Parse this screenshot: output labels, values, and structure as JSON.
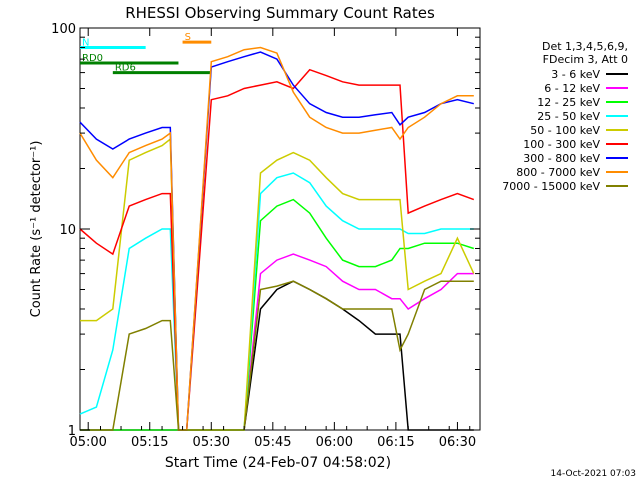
{
  "chart_data": {
    "type": "line",
    "title": "RHESSI Observing Summary Count Rates",
    "xlabel": "Start Time (24-Feb-07 04:58:02)",
    "ylabel": "Count Rate (s⁻¹ detector⁻¹)",
    "yscale": "log",
    "ylim": [
      1,
      100
    ],
    "xlim_minutes": [
      0,
      97.5
    ],
    "x_ticks": [
      {
        "m": 2,
        "label": "05:00"
      },
      {
        "m": 17,
        "label": "05:15"
      },
      {
        "m": 32,
        "label": "05:30"
      },
      {
        "m": 47,
        "label": "05:45"
      },
      {
        "m": 62,
        "label": "06:00"
      },
      {
        "m": 77,
        "label": "06:15"
      },
      {
        "m": 92,
        "label": "06:30"
      }
    ],
    "y_ticks": [
      {
        "v": 1,
        "label": "1"
      },
      {
        "v": 10,
        "label": "10"
      },
      {
        "v": 100,
        "label": "100"
      }
    ],
    "legend_header": [
      "Det 1,3,4,5,6,9,",
      "FDecim 3, Att 0"
    ],
    "legend_position": "right",
    "footer_date": "14-Oct-2021 07:03",
    "series": [
      {
        "name": "3 - 6 keV",
        "color": "#000000",
        "x": [
          0,
          4,
          8,
          12,
          16,
          20,
          22,
          24,
          26,
          32,
          36,
          40,
          44,
          48,
          52,
          56,
          60,
          64,
          68,
          72,
          76,
          78,
          80,
          84,
          88,
          92,
          96
        ],
        "y": [
          1.0,
          1.0,
          1.0,
          1.0,
          1.0,
          1.0,
          1.0,
          1.0,
          1.0,
          1.0,
          1.0,
          1.0,
          4.0,
          5.0,
          5.5,
          5.0,
          4.5,
          4.0,
          3.5,
          3.0,
          3.0,
          3.0,
          1.0,
          1.0,
          1.0,
          1.0,
          1.0
        ]
      },
      {
        "name": "6 - 12 keV",
        "color": "#ff00ff",
        "x": [
          0,
          4,
          8,
          12,
          16,
          20,
          22,
          24,
          26,
          32,
          36,
          40,
          44,
          48,
          52,
          56,
          60,
          64,
          68,
          72,
          76,
          78,
          80,
          84,
          88,
          92,
          96
        ],
        "y": [
          1.0,
          1.0,
          1.0,
          1.0,
          1.0,
          1.0,
          1.0,
          1.0,
          1.0,
          1.0,
          1.0,
          1.0,
          6.0,
          7.0,
          7.5,
          7.0,
          6.5,
          5.5,
          5.0,
          5.0,
          4.5,
          4.5,
          4.0,
          4.5,
          5.0,
          6.0,
          6.0
        ]
      },
      {
        "name": "12 - 25 keV",
        "color": "#00ff00",
        "x": [
          0,
          4,
          8,
          12,
          16,
          20,
          22,
          24,
          26,
          32,
          36,
          40,
          44,
          48,
          52,
          56,
          60,
          64,
          68,
          72,
          76,
          78,
          80,
          84,
          88,
          92,
          96
        ],
        "y": [
          1.0,
          1.0,
          1.0,
          1.0,
          1.0,
          1.0,
          1.0,
          1.0,
          1.0,
          1.0,
          1.0,
          1.0,
          11.0,
          13.0,
          14.0,
          12.0,
          9.0,
          7.0,
          6.5,
          6.5,
          7.0,
          8.0,
          8.0,
          8.5,
          8.5,
          8.5,
          8.0
        ]
      },
      {
        "name": "25 - 50 keV",
        "color": "#00ffff",
        "x": [
          0,
          4,
          8,
          12,
          16,
          20,
          22,
          24,
          26,
          32,
          36,
          40,
          44,
          48,
          52,
          56,
          60,
          64,
          68,
          72,
          76,
          78,
          80,
          84,
          88,
          92,
          96
        ],
        "y": [
          1.2,
          1.3,
          2.5,
          8.0,
          9.0,
          10.0,
          10.0,
          1.0,
          1.0,
          1.0,
          1.0,
          1.0,
          15.0,
          18.0,
          19.0,
          17.0,
          13.0,
          11.0,
          10.0,
          10.0,
          10.0,
          10.0,
          9.5,
          9.5,
          10.0,
          10.0,
          10.0
        ]
      },
      {
        "name": "50 - 100 keV",
        "color": "#cccc00",
        "x": [
          0,
          4,
          8,
          12,
          16,
          20,
          22,
          24,
          26,
          32,
          36,
          40,
          44,
          48,
          52,
          56,
          60,
          64,
          68,
          72,
          76,
          78,
          80,
          84,
          88,
          92,
          96
        ],
        "y": [
          3.5,
          3.5,
          4.0,
          22.0,
          24.0,
          26.0,
          28.0,
          1.0,
          1.0,
          1.0,
          1.0,
          1.0,
          19.0,
          22.0,
          24.0,
          22.0,
          18.0,
          15.0,
          14.0,
          14.0,
          14.0,
          14.0,
          5.0,
          5.5,
          6.0,
          9.0,
          6.0
        ]
      },
      {
        "name": "100 - 300 keV",
        "color": "#ff0000",
        "x": [
          0,
          4,
          8,
          12,
          16,
          20,
          22,
          24,
          26,
          32,
          36,
          40,
          44,
          48,
          52,
          56,
          60,
          64,
          68,
          72,
          76,
          78,
          80,
          84,
          88,
          92,
          96
        ],
        "y": [
          10.0,
          8.5,
          7.5,
          13.0,
          14.0,
          15.0,
          15.0,
          1.0,
          1.0,
          44.0,
          46.0,
          50.0,
          52.0,
          54.0,
          50.0,
          62.0,
          58.0,
          54.0,
          52.0,
          52.0,
          52.0,
          52.0,
          12.0,
          13.0,
          14.0,
          15.0,
          14.0
        ]
      },
      {
        "name": "300 - 800 keV",
        "color": "#0000ff",
        "x": [
          0,
          4,
          8,
          12,
          16,
          20,
          22,
          24,
          26,
          32,
          36,
          40,
          44,
          48,
          52,
          56,
          60,
          64,
          68,
          72,
          76,
          78,
          80,
          84,
          88,
          92,
          96
        ],
        "y": [
          34.0,
          28.0,
          25.0,
          28.0,
          30.0,
          32.0,
          32.0,
          1.0,
          1.0,
          64.0,
          68.0,
          72.0,
          76.0,
          70.0,
          52.0,
          42.0,
          38.0,
          36.0,
          36.0,
          37.0,
          38.0,
          33.0,
          36.0,
          38.0,
          42.0,
          44.0,
          42.0
        ]
      },
      {
        "name": "800 - 7000 keV",
        "color": "#ff8c00",
        "x": [
          0,
          4,
          8,
          12,
          16,
          20,
          22,
          24,
          26,
          32,
          36,
          40,
          44,
          48,
          52,
          56,
          60,
          64,
          68,
          72,
          76,
          78,
          80,
          84,
          88,
          92,
          96
        ],
        "y": [
          30.0,
          22.0,
          18.0,
          24.0,
          26.0,
          28.0,
          30.0,
          1.0,
          1.0,
          68.0,
          72.0,
          78.0,
          80.0,
          75.0,
          48.0,
          36.0,
          32.0,
          30.0,
          30.0,
          31.0,
          32.0,
          28.0,
          32.0,
          36.0,
          42.0,
          46.0,
          46.0
        ]
      },
      {
        "name": "7000 - 15000 keV",
        "color": "#808000",
        "x": [
          0,
          4,
          8,
          12,
          16,
          20,
          22,
          24,
          26,
          32,
          36,
          40,
          44,
          48,
          52,
          56,
          60,
          64,
          68,
          72,
          76,
          78,
          80,
          84,
          88,
          92,
          96
        ],
        "y": [
          1.0,
          1.0,
          1.0,
          3.0,
          3.2,
          3.5,
          3.5,
          1.0,
          1.0,
          1.0,
          1.0,
          1.0,
          5.0,
          5.2,
          5.5,
          5.0,
          4.5,
          4.0,
          4.0,
          4.0,
          4.0,
          2.5,
          3.0,
          5.0,
          5.5,
          5.5,
          5.5
        ]
      }
    ],
    "annotations": [
      {
        "label": "RD0",
        "color": "#008000",
        "x_start": 0,
        "x_end": 24,
        "y": 67
      },
      {
        "label": "RD6",
        "color": "#008000",
        "x_start": 8,
        "x_end": 32,
        "y": 60
      },
      {
        "label": "N",
        "color": "#00ffff",
        "x_start": 0,
        "x_end": 16,
        "y": 80
      },
      {
        "label": "S",
        "color": "#ff8c00",
        "x_start": 25,
        "x_end": 32,
        "y": 85
      }
    ]
  }
}
